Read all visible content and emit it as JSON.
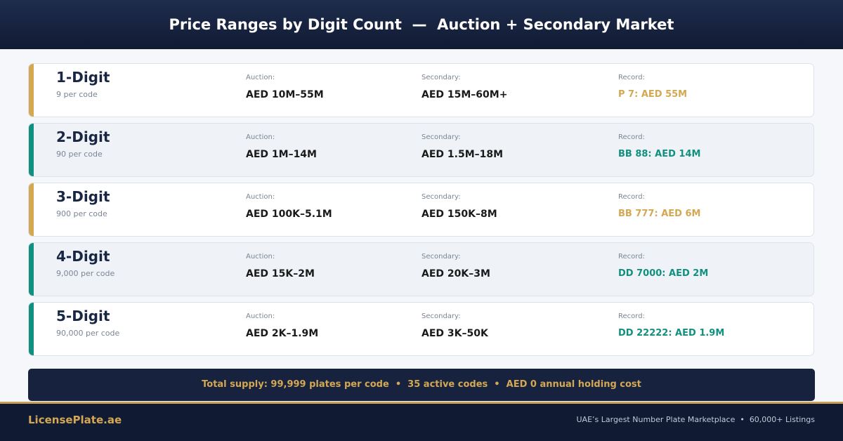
{
  "header": {
    "title": "Price Ranges by Digit Count  —  Auction + Secondary Market"
  },
  "rows": [
    {
      "name": "1-Digit",
      "supply": "9 per code",
      "accent": "#d4a853",
      "shaded": false,
      "auction_label": "Auction:",
      "auction": "AED 10M–55M",
      "secondary_label": "Secondary:",
      "secondary": "AED 15M–60M+",
      "record_label": "Record:",
      "record": "P 7: AED 55M"
    },
    {
      "name": "2-Digit",
      "supply": "90 per code",
      "accent": "#12907f",
      "shaded": true,
      "auction_label": "Auction:",
      "auction": "AED 1M–14M",
      "secondary_label": "Secondary:",
      "secondary": "AED 1.5M–18M",
      "record_label": "Record:",
      "record": "BB 88: AED 14M"
    },
    {
      "name": "3-Digit",
      "supply": "900 per code",
      "accent": "#d4a853",
      "shaded": false,
      "auction_label": "Auction:",
      "auction": "AED 100K–5.1M",
      "secondary_label": "Secondary:",
      "secondary": "AED 150K–8M",
      "record_label": "Record:",
      "record": "BB 777: AED 6M"
    },
    {
      "name": "4-Digit",
      "supply": "9,000 per code",
      "accent": "#12907f",
      "shaded": true,
      "auction_label": "Auction:",
      "auction": "AED 15K–2M",
      "secondary_label": "Secondary:",
      "secondary": "AED 20K–3M",
      "record_label": "Record:",
      "record": "DD 7000: AED 2M"
    },
    {
      "name": "5-Digit",
      "supply": "90,000 per code",
      "accent": "#12907f",
      "shaded": false,
      "auction_label": "Auction:",
      "auction": "AED 2K–1.9M",
      "secondary_label": "Secondary:",
      "secondary": "AED 3K–50K",
      "record_label": "Record:",
      "record": "DD 22222: AED 1.9M"
    }
  ],
  "banner": {
    "text": "Total supply: 99,999 plates per code  •  35 active codes  •  AED 0 annual holding cost"
  },
  "footer": {
    "brand": "LicensePlate.ae",
    "tagline": "UAE’s Largest Number Plate Marketplace  •  60,000+ Listings"
  }
}
